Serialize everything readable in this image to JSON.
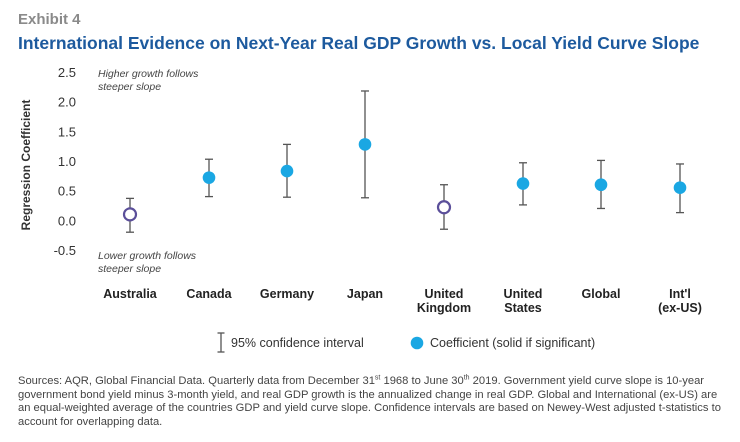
{
  "header": {
    "exhibit": "Exhibit 4",
    "title": "International Evidence on Next-Year Real GDP Growth vs. Local Yield Curve Slope"
  },
  "colors": {
    "title": "#1d5a9e",
    "significant": "#1aa7e3",
    "insignificant_stroke": "#5b4f9a",
    "error_bar": "#555555"
  },
  "chart_data": {
    "type": "scatter",
    "ylabel": "Regression Coefficient",
    "ylim": [
      -0.5,
      2.5
    ],
    "yticks": [
      "2.5",
      "2.0",
      "1.5",
      "1.0",
      "0.5",
      "0.0",
      "-0.5"
    ],
    "categories": [
      [
        "Australia"
      ],
      [
        "Canada"
      ],
      [
        "Germany"
      ],
      [
        "Japan"
      ],
      [
        "United",
        "Kingdom"
      ],
      [
        "United",
        "States"
      ],
      [
        "Global"
      ],
      [
        "Int'l",
        "(ex-US)"
      ]
    ],
    "coefficient": [
      0.1,
      0.72,
      0.83,
      1.28,
      0.22,
      0.62,
      0.6,
      0.55
    ],
    "ci_low": [
      -0.2,
      0.4,
      0.39,
      0.38,
      -0.15,
      0.26,
      0.2,
      0.13
    ],
    "ci_high": [
      0.37,
      1.03,
      1.28,
      2.18,
      0.6,
      0.97,
      1.01,
      0.95
    ],
    "significant": [
      false,
      true,
      true,
      true,
      false,
      true,
      true,
      true
    ],
    "annotations": {
      "top": [
        "Higher growth follows",
        "steeper slope"
      ],
      "bottom": [
        "Lower growth follows",
        "steeper slope"
      ]
    },
    "legend": {
      "ci": "95% confidence interval",
      "coef": "Coefficient (solid if significant)"
    },
    "grid": false
  },
  "footnote": {
    "part1": "Sources: AQR, Global Financial Data. Quarterly data from December 31",
    "sup1": "st",
    "part2": " 1968 to June 30",
    "sup2": "th",
    "part3": " 2019. Government yield curve slope is 10-year government bond yield minus 3-month yield, and real GDP growth is the annualized change in real GDP. Global and International (ex-US) are an equal-weighted average of the countries GDP and yield curve slope. Confidence intervals are based on Newey-West adjusted t-statistics to account for overlapping data."
  }
}
